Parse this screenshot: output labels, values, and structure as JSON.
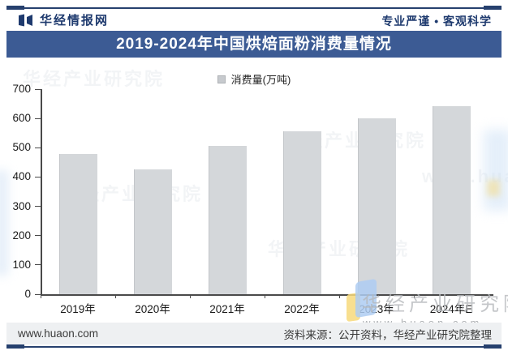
{
  "header": {
    "brand": "华经情报网",
    "slogan": "专业严谨 • 客观科学"
  },
  "title_bar": "2019-2024年中国烘焙面粉消费量情况",
  "chart_data": {
    "type": "bar",
    "title": "2019-2024年中国烘焙面粉消费量情况",
    "categories": [
      "2019年",
      "2020年",
      "2021年",
      "2022年",
      "2023年",
      "2024年E"
    ],
    "values": [
      478,
      425,
      507,
      557,
      600,
      643
    ],
    "legend": [
      "消费量(万吨)"
    ],
    "legend_position": "top-center",
    "xlabel": "",
    "ylabel": "",
    "ylim": [
      0,
      700
    ],
    "ytick_step": 100,
    "grid": false,
    "bar_color": "#d4d7da"
  },
  "watermark": {
    "org": "华经产业研究院",
    "site": "www.huaon.com"
  },
  "footer": {
    "site": "www.huaon.com",
    "source": "资料来源：公开资料，华经产业研究院整理"
  },
  "colors": {
    "title_bar": "#3c5b94",
    "brand_navy": "#1e3a6e",
    "border_line": "#26406e",
    "bar": "#d4d7da",
    "footer_bg": "#eef0f2"
  }
}
